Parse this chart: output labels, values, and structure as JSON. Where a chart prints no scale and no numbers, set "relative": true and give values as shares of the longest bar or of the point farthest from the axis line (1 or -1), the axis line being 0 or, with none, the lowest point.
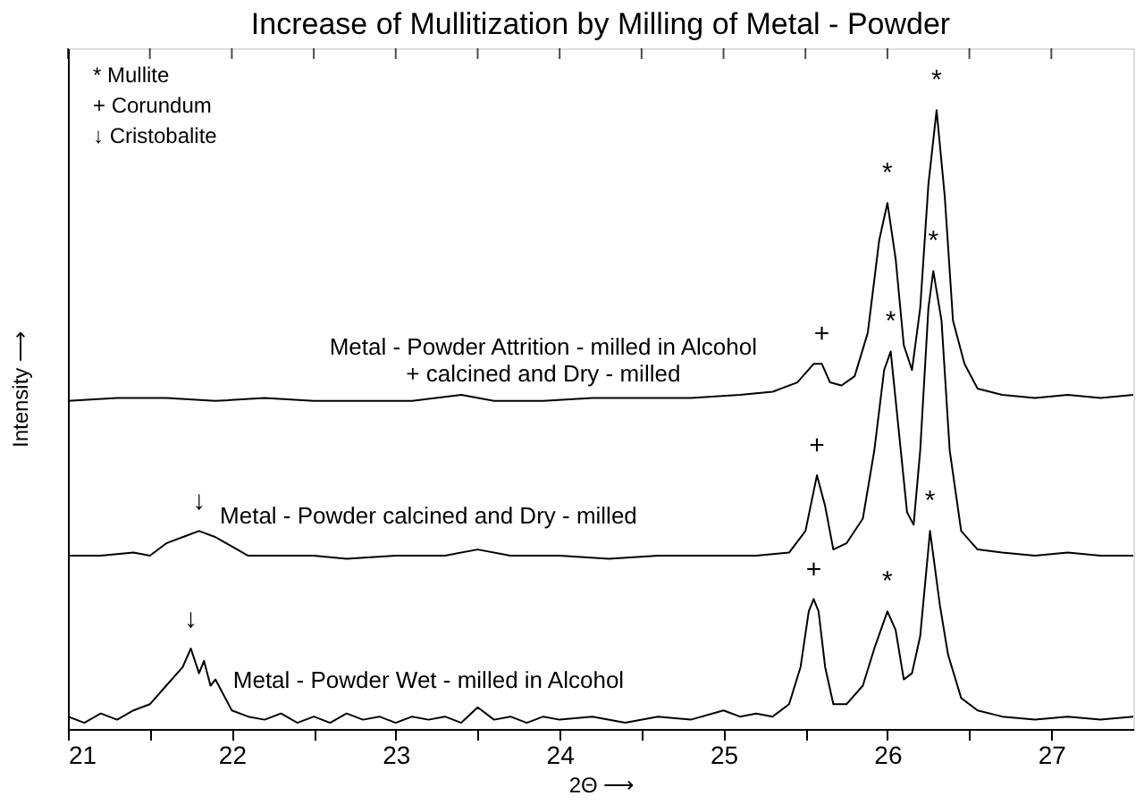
{
  "chart_data": {
    "type": "line",
    "relative": true,
    "title": "Increase of Mullitization by Milling of Metal - Powder",
    "xlabel": "2Θ ⟶",
    "ylabel": "Intensity ⟶",
    "xlim": [
      21,
      27.5
    ],
    "xticks": [
      21,
      {
        "value": 21.5,
        "label": null
      },
      22,
      {
        "value": 22.5,
        "label": null
      },
      23,
      {
        "value": 23.5,
        "label": null
      },
      24,
      {
        "value": 24.5,
        "label": null
      },
      25,
      {
        "value": 25.5,
        "label": null
      },
      26,
      {
        "value": 26.5,
        "label": null
      },
      27
    ],
    "grid": false,
    "series": [
      {
        "name": "Metal - Powder Attrition - milled in Alcohol\n+ calcined and Dry - milled",
        "color": "#000000",
        "x": [
          21.0,
          21.3,
          21.6,
          21.9,
          22.2,
          22.5,
          22.8,
          23.1,
          23.4,
          23.6,
          23.9,
          24.2,
          24.5,
          24.8,
          25.1,
          25.3,
          25.45,
          25.55,
          25.6,
          25.65,
          25.72,
          25.8,
          25.88,
          25.95,
          26.0,
          26.05,
          26.1,
          26.15,
          26.2,
          26.25,
          26.3,
          26.35,
          26.4,
          26.47,
          26.55,
          26.7,
          26.9,
          27.1,
          27.3,
          27.5
        ],
        "values": [
          0.53,
          0.535,
          0.535,
          0.53,
          0.535,
          0.53,
          0.53,
          0.53,
          0.54,
          0.53,
          0.53,
          0.535,
          0.535,
          0.535,
          0.54,
          0.545,
          0.56,
          0.59,
          0.59,
          0.56,
          0.555,
          0.57,
          0.64,
          0.79,
          0.85,
          0.76,
          0.62,
          0.58,
          0.68,
          0.88,
          1.0,
          0.86,
          0.66,
          0.59,
          0.55,
          0.54,
          0.535,
          0.54,
          0.535,
          0.54
        ]
      },
      {
        "name": "Metal - Powder calcined and Dry - milled",
        "color": "#000000",
        "x": [
          21.0,
          21.2,
          21.4,
          21.5,
          21.6,
          21.7,
          21.8,
          21.9,
          22.0,
          22.1,
          22.3,
          22.5,
          22.7,
          23.0,
          23.3,
          23.5,
          23.7,
          24.0,
          24.3,
          24.6,
          24.9,
          25.2,
          25.4,
          25.5,
          25.57,
          25.62,
          25.67,
          25.75,
          25.85,
          25.92,
          25.98,
          26.02,
          26.07,
          26.12,
          26.16,
          26.2,
          26.25,
          26.28,
          26.33,
          26.38,
          26.45,
          26.55,
          26.7,
          26.9,
          27.1,
          27.3,
          27.5
        ],
        "values": [
          0.28,
          0.28,
          0.285,
          0.28,
          0.3,
          0.31,
          0.32,
          0.31,
          0.295,
          0.28,
          0.28,
          0.28,
          0.275,
          0.28,
          0.28,
          0.29,
          0.28,
          0.28,
          0.275,
          0.28,
          0.28,
          0.28,
          0.285,
          0.32,
          0.41,
          0.36,
          0.29,
          0.3,
          0.34,
          0.45,
          0.58,
          0.61,
          0.48,
          0.35,
          0.33,
          0.45,
          0.68,
          0.74,
          0.66,
          0.45,
          0.32,
          0.29,
          0.285,
          0.28,
          0.285,
          0.28,
          0.28
        ]
      },
      {
        "name": "Metal - Powder Wet - milled in Alcohol",
        "color": "#000000",
        "x": [
          21.0,
          21.1,
          21.2,
          21.3,
          21.4,
          21.5,
          21.6,
          21.7,
          21.75,
          21.8,
          21.83,
          21.87,
          21.9,
          22.0,
          22.1,
          22.2,
          22.3,
          22.4,
          22.5,
          22.6,
          22.7,
          22.8,
          22.9,
          23.0,
          23.1,
          23.2,
          23.3,
          23.4,
          23.5,
          23.6,
          23.7,
          23.8,
          23.9,
          24.0,
          24.2,
          24.4,
          24.6,
          24.8,
          25.0,
          25.1,
          25.2,
          25.3,
          25.4,
          25.47,
          25.52,
          25.55,
          25.58,
          25.62,
          25.67,
          25.75,
          25.85,
          25.92,
          26.0,
          26.05,
          26.1,
          26.15,
          26.2,
          26.26,
          26.32,
          26.37,
          26.45,
          26.55,
          26.7,
          26.9,
          27.1,
          27.3,
          27.5
        ],
        "values": [
          0.02,
          0.01,
          0.025,
          0.015,
          0.03,
          0.04,
          0.07,
          0.1,
          0.13,
          0.09,
          0.11,
          0.07,
          0.08,
          0.03,
          0.02,
          0.015,
          0.025,
          0.01,
          0.02,
          0.01,
          0.025,
          0.015,
          0.02,
          0.01,
          0.02,
          0.015,
          0.02,
          0.01,
          0.035,
          0.015,
          0.02,
          0.01,
          0.02,
          0.015,
          0.02,
          0.01,
          0.02,
          0.015,
          0.03,
          0.02,
          0.025,
          0.02,
          0.04,
          0.1,
          0.19,
          0.21,
          0.19,
          0.1,
          0.04,
          0.04,
          0.07,
          0.13,
          0.19,
          0.16,
          0.08,
          0.09,
          0.15,
          0.32,
          0.2,
          0.12,
          0.05,
          0.03,
          0.02,
          0.015,
          0.02,
          0.015,
          0.02
        ]
      }
    ],
    "annotations": [
      "* Mullite",
      "+ Corundum",
      "↓ Cristobalite",
      {
        "text": "↓",
        "x": 21.75,
        "y": 0.13
      },
      {
        "text": "↓",
        "x": 21.8,
        "y": 0.32
      },
      {
        "text": "+",
        "x": 25.55,
        "y": 0.21
      },
      {
        "text": "+",
        "x": 25.57,
        "y": 0.41
      },
      {
        "text": "+",
        "x": 25.6,
        "y": 0.59
      },
      {
        "text": "*",
        "x": 26.0,
        "y": 0.19
      },
      {
        "text": "*",
        "x": 26.26,
        "y": 0.32
      },
      {
        "text": "*",
        "x": 26.02,
        "y": 0.61
      },
      {
        "text": "*",
        "x": 26.28,
        "y": 0.74
      },
      {
        "text": "*",
        "x": 26.0,
        "y": 0.85
      },
      {
        "text": "*",
        "x": 26.3,
        "y": 1.0
      }
    ]
  }
}
